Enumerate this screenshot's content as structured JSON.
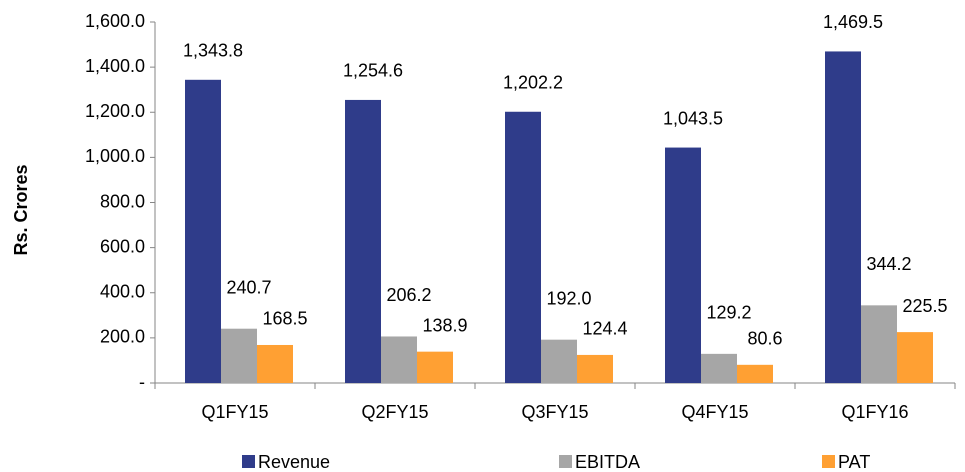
{
  "chart_data": {
    "type": "bar",
    "y_axis_label": "Rs. Crores",
    "categories": [
      "Q1FY15",
      "Q2FY15",
      "Q3FY15",
      "Q4FY15",
      "Q1FY16"
    ],
    "series": [
      {
        "name": "Revenue",
        "color": "#2F3C8A",
        "values": [
          1343.8,
          1254.6,
          1202.2,
          1043.5,
          1469.5
        ],
        "value_labels": [
          "1,343.8",
          "1,254.6",
          "1,202.2",
          "1,043.5",
          "1,469.5"
        ]
      },
      {
        "name": "EBITDA",
        "color": "#A6A6A6",
        "values": [
          240.7,
          206.2,
          192.0,
          129.2,
          344.2
        ],
        "value_labels": [
          "240.7",
          "206.2",
          "192.0",
          "129.2",
          "344.2"
        ]
      },
      {
        "name": "PAT",
        "color": "#FFA033",
        "values": [
          168.5,
          138.9,
          124.4,
          80.6,
          225.5
        ],
        "value_labels": [
          "168.5",
          "138.9",
          "124.4",
          "80.6",
          "225.5"
        ]
      }
    ],
    "ylim": [
      0,
      1600
    ],
    "yticks": [
      {
        "value": 0,
        "label": "-"
      },
      {
        "value": 200,
        "label": "200.0"
      },
      {
        "value": 400,
        "label": "400.0"
      },
      {
        "value": 600,
        "label": "600.0"
      },
      {
        "value": 800,
        "label": "800.0"
      },
      {
        "value": 1000,
        "label": "1,000.0"
      },
      {
        "value": 1200,
        "label": "1,200.0"
      },
      {
        "value": 1400,
        "label": "1,400.0"
      },
      {
        "value": 1600,
        "label": "1,600.0"
      }
    ],
    "legend": "bottom"
  }
}
